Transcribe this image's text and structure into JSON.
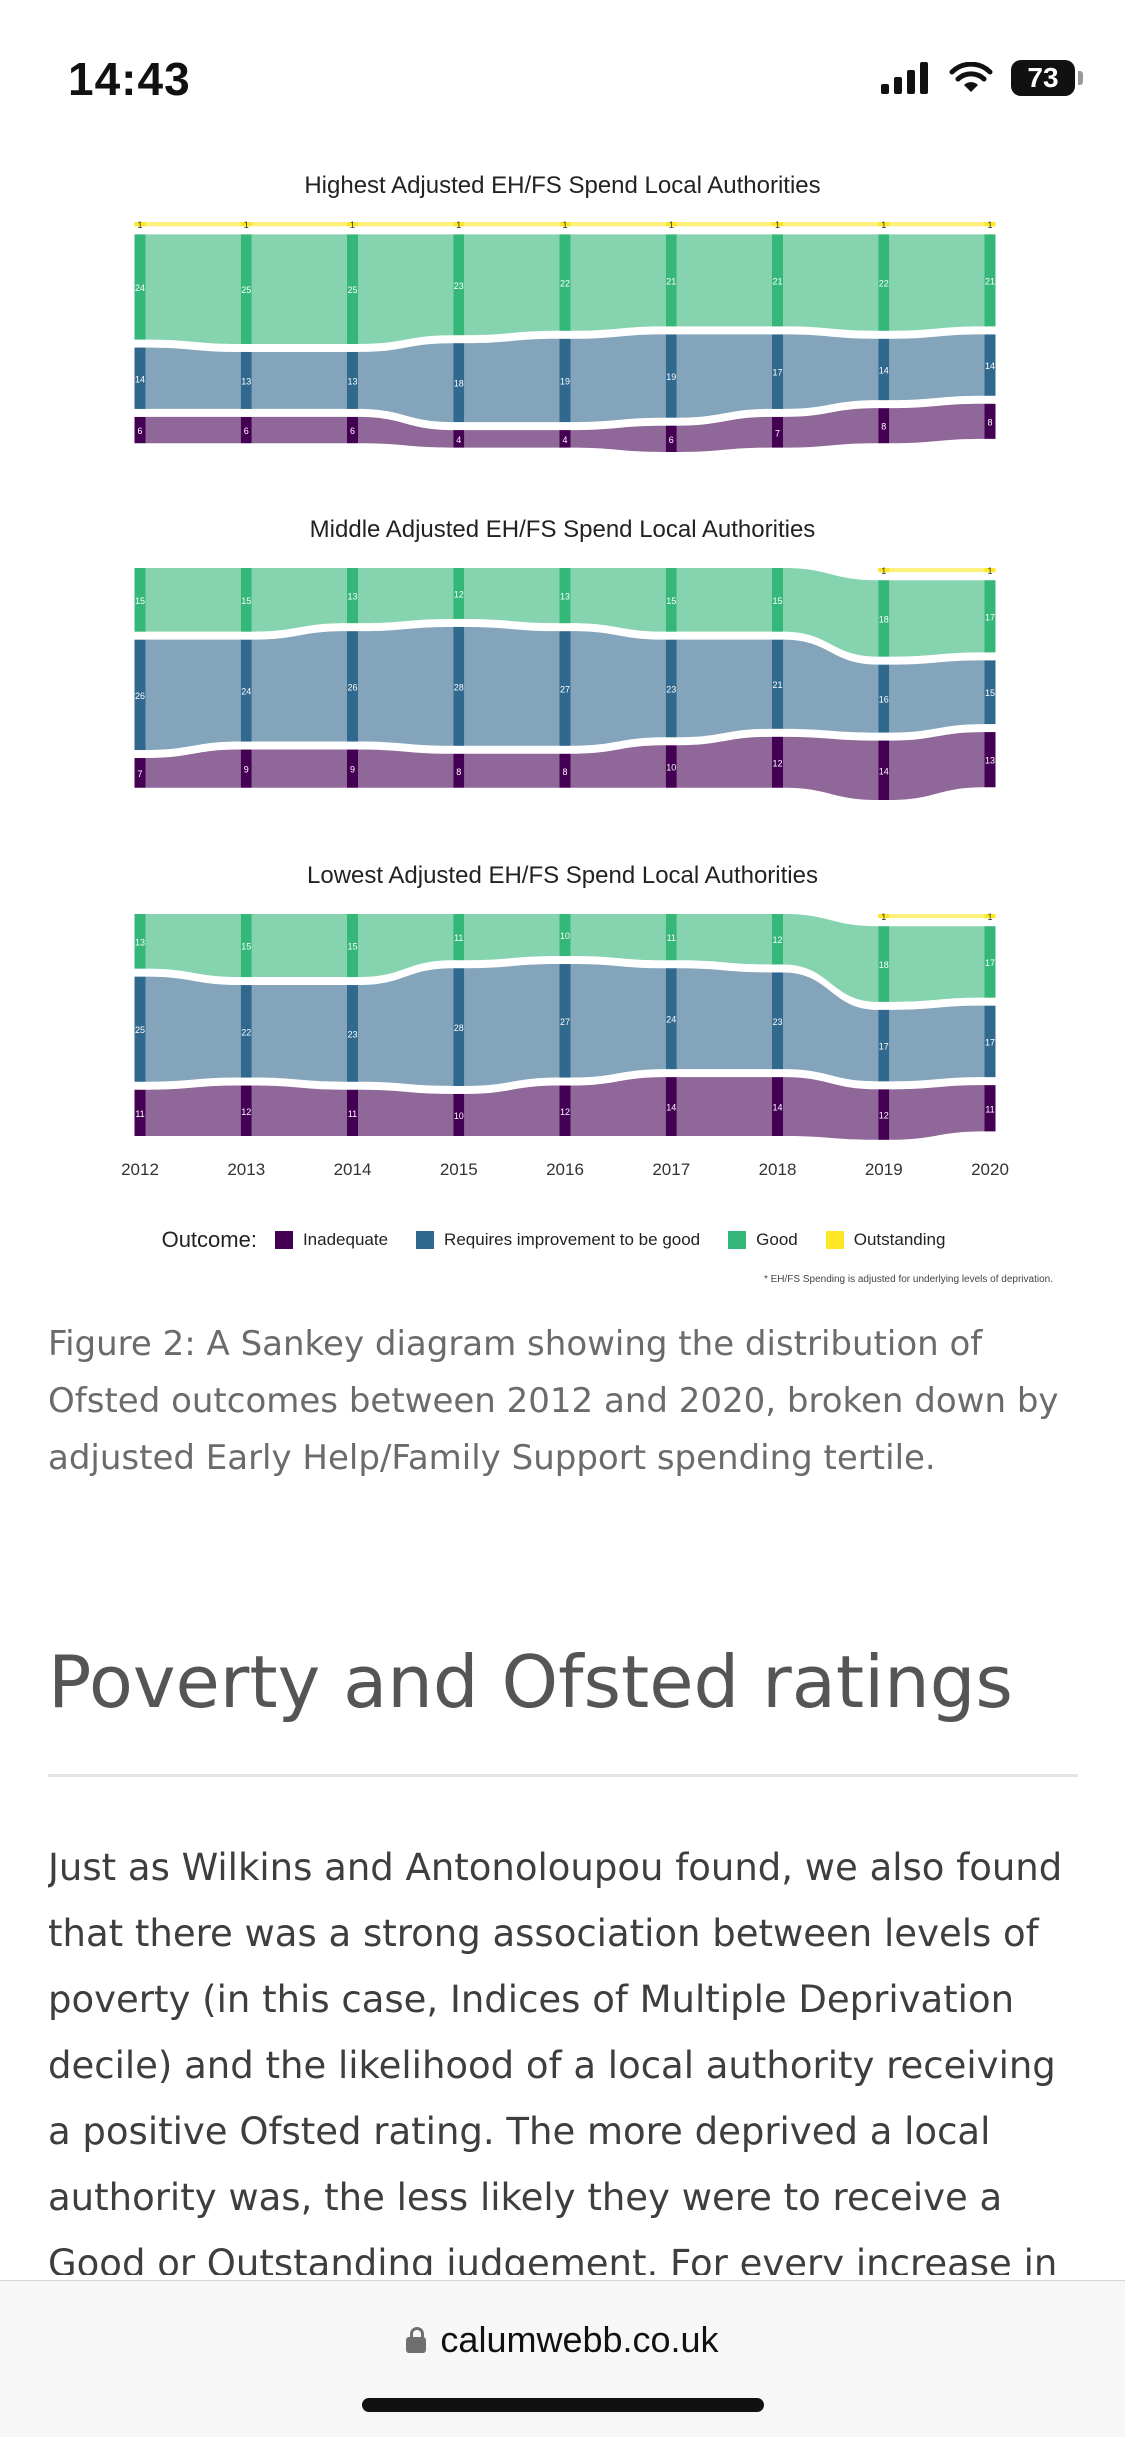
{
  "status": {
    "time": "14:43",
    "battery": "73"
  },
  "colors": {
    "inadequate": "#440154",
    "requires": "#31688e",
    "good": "#35b779",
    "outstanding": "#fde725"
  },
  "chart_data": [
    {
      "type": "sankey",
      "title": "Highest Adjusted EH/FS Spend Local Authorities",
      "x": [
        "2012",
        "2013",
        "2014",
        "2015",
        "2016",
        "2017",
        "2018",
        "2019",
        "2020"
      ],
      "series": [
        {
          "name": "Outstanding",
          "values": [
            1,
            1,
            1,
            1,
            1,
            1,
            1,
            1,
            1
          ]
        },
        {
          "name": "Good",
          "values": [
            24,
            25,
            25,
            23,
            22,
            21,
            21,
            22,
            21
          ]
        },
        {
          "name": "Requires improvement to be good",
          "values": [
            14,
            13,
            13,
            18,
            19,
            19,
            17,
            14,
            14
          ]
        },
        {
          "name": "Inadequate",
          "values": [
            6,
            6,
            6,
            4,
            4,
            6,
            7,
            8,
            8
          ]
        }
      ]
    },
    {
      "type": "sankey",
      "title": "Middle Adjusted EH/FS Spend Local Authorities",
      "x": [
        "2012",
        "2013",
        "2014",
        "2015",
        "2016",
        "2017",
        "2018",
        "2019",
        "2020"
      ],
      "series": [
        {
          "name": "Outstanding",
          "values": [
            0,
            0,
            0,
            0,
            0,
            0,
            0,
            1,
            1
          ]
        },
        {
          "name": "Good",
          "values": [
            15,
            15,
            13,
            12,
            13,
            15,
            15,
            18,
            17
          ]
        },
        {
          "name": "Requires improvement to be good",
          "values": [
            26,
            24,
            26,
            28,
            27,
            23,
            21,
            16,
            15
          ]
        },
        {
          "name": "Inadequate",
          "values": [
            7,
            9,
            9,
            8,
            8,
            10,
            12,
            14,
            13
          ]
        }
      ]
    },
    {
      "type": "sankey",
      "title": "Lowest Adjusted EH/FS Spend Local Authorities",
      "x": [
        "2012",
        "2013",
        "2014",
        "2015",
        "2016",
        "2017",
        "2018",
        "2019",
        "2020"
      ],
      "series": [
        {
          "name": "Outstanding",
          "values": [
            0,
            0,
            0,
            0,
            0,
            0,
            0,
            1,
            1
          ]
        },
        {
          "name": "Good",
          "values": [
            13,
            15,
            15,
            11,
            10,
            11,
            12,
            18,
            17
          ]
        },
        {
          "name": "Requires improvement to be good",
          "values": [
            25,
            22,
            23,
            28,
            27,
            24,
            23,
            17,
            17
          ]
        },
        {
          "name": "Inadequate",
          "values": [
            11,
            12,
            11,
            10,
            12,
            14,
            14,
            12,
            11
          ]
        }
      ]
    }
  ],
  "legend": {
    "title": "Outcome:",
    "items": [
      "Inadequate",
      "Requires improvement to be good",
      "Good",
      "Outstanding"
    ]
  },
  "footnote": "* EH/FS Spending is adjusted for underlying levels of deprivation.",
  "caption": "Figure 2: A Sankey diagram showing the distribution of Ofsted outcomes between 2012 and 2020, broken down by adjusted Early Help/Family Support spending tertile.",
  "section": {
    "heading": "Poverty and Ofsted ratings",
    "body": "Just as Wilkins and Antonoloupou found, we also found that there was a strong association between levels of poverty (in this case, Indices of Multiple Deprivation decile) and the likelihood of a local authority receiving a positive Ofsted rating. The more deprived a local authority was, the less likely they were to receive a Good or Outstanding judgement. For every increase in"
  },
  "browser": {
    "url": "calumwebb.co.uk"
  }
}
